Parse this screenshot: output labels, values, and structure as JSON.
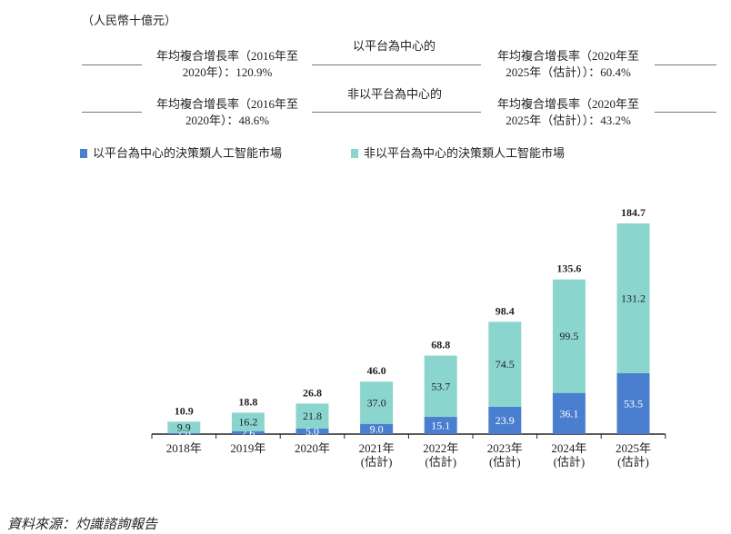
{
  "unit_label": "（人民幣十億元）",
  "cagr": {
    "platform_label": "以平台為中心的",
    "nonplatform_label": "非以平台為中心的",
    "platform_hist": [
      "年均複合增長率（2016年至",
      "2020年）：120.9%"
    ],
    "platform_fore": [
      "年均複合增長率（2020年至",
      "2025年（估計））：60.4%"
    ],
    "nonplatform_hist": [
      "年均複合增長率（2016年至",
      "2020年）：48.6%"
    ],
    "nonplatform_fore": [
      "年均複合增長率（2020年至",
      "2025年（估計））：43.2%"
    ]
  },
  "source": "資料來源：灼識諮詢報告",
  "chart_data": {
    "type": "bar",
    "stacked": true,
    "categories": [
      [
        "2018年"
      ],
      [
        "2019年"
      ],
      [
        "2020年"
      ],
      [
        "2021年",
        "(估計)"
      ],
      [
        "2022年",
        "(估計)"
      ],
      [
        "2023年",
        "(估計)"
      ],
      [
        "2024年",
        "(估計)"
      ],
      [
        "2025年",
        "(估計)"
      ]
    ],
    "series": [
      {
        "name": "以平台為中心的決策類人工智能市場",
        "color": "#4a7fcf",
        "values": [
          1.0,
          2.6,
          5.0,
          9.0,
          15.1,
          23.9,
          36.1,
          53.5
        ]
      },
      {
        "name": "非以平台為中心的決策類人工智能市場",
        "color": "#8ad6cf",
        "values": [
          9.9,
          16.2,
          21.8,
          37.0,
          53.7,
          74.5,
          99.5,
          131.2
        ]
      }
    ],
    "totals": [
      10.9,
      18.8,
      26.8,
      46.0,
      68.8,
      98.4,
      135.6,
      184.7
    ],
    "legend_position": "top-left",
    "grid": false
  }
}
